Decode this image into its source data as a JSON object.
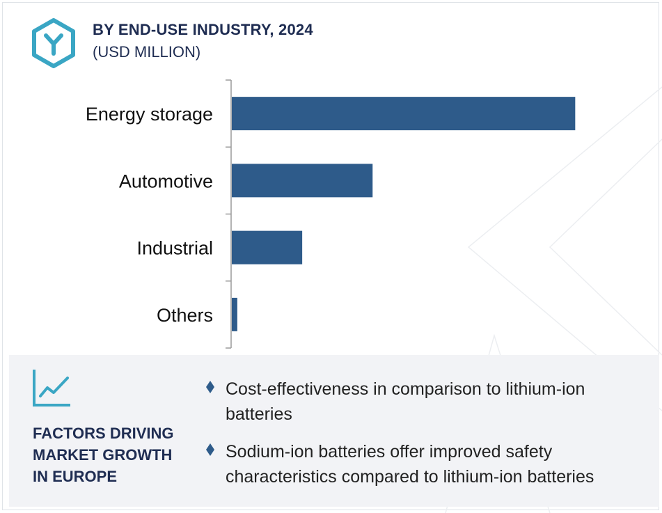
{
  "header": {
    "title": "BY END-USE INDUSTRY, 2024",
    "subtitle": "(USD MILLION)"
  },
  "colors": {
    "bar": "#2e5b8a",
    "accent": "#3aa6c4",
    "navy": "#1f2d52",
    "panel": "#f2f3f6"
  },
  "icons": {
    "logo": "hexagon-y-logo-icon",
    "factors": "trend-chart-icon",
    "bullet": "diamond-bullet-icon"
  },
  "chart_data": {
    "type": "bar",
    "orientation": "horizontal",
    "title": "BY END-USE INDUSTRY, 2024",
    "subtitle": "(USD MILLION)",
    "categories": [
      "Energy storage",
      "Automotive",
      "Industrial",
      "Others"
    ],
    "values": [
      100,
      41,
      20.5,
      1.6
    ],
    "xlim": [
      0,
      105
    ],
    "axis_labels_shown": false,
    "grid": false,
    "legend": "none"
  },
  "factors": {
    "title_lines": [
      "FACTORS DRIVING",
      "MARKET GROWTH",
      "IN EUROPE"
    ],
    "bullets": [
      "Cost-effectiveness in comparison to lithium-ion batteries",
      "Sodium-ion batteries offer improved safety characteristics compared to lithium-ion batteries"
    ]
  }
}
